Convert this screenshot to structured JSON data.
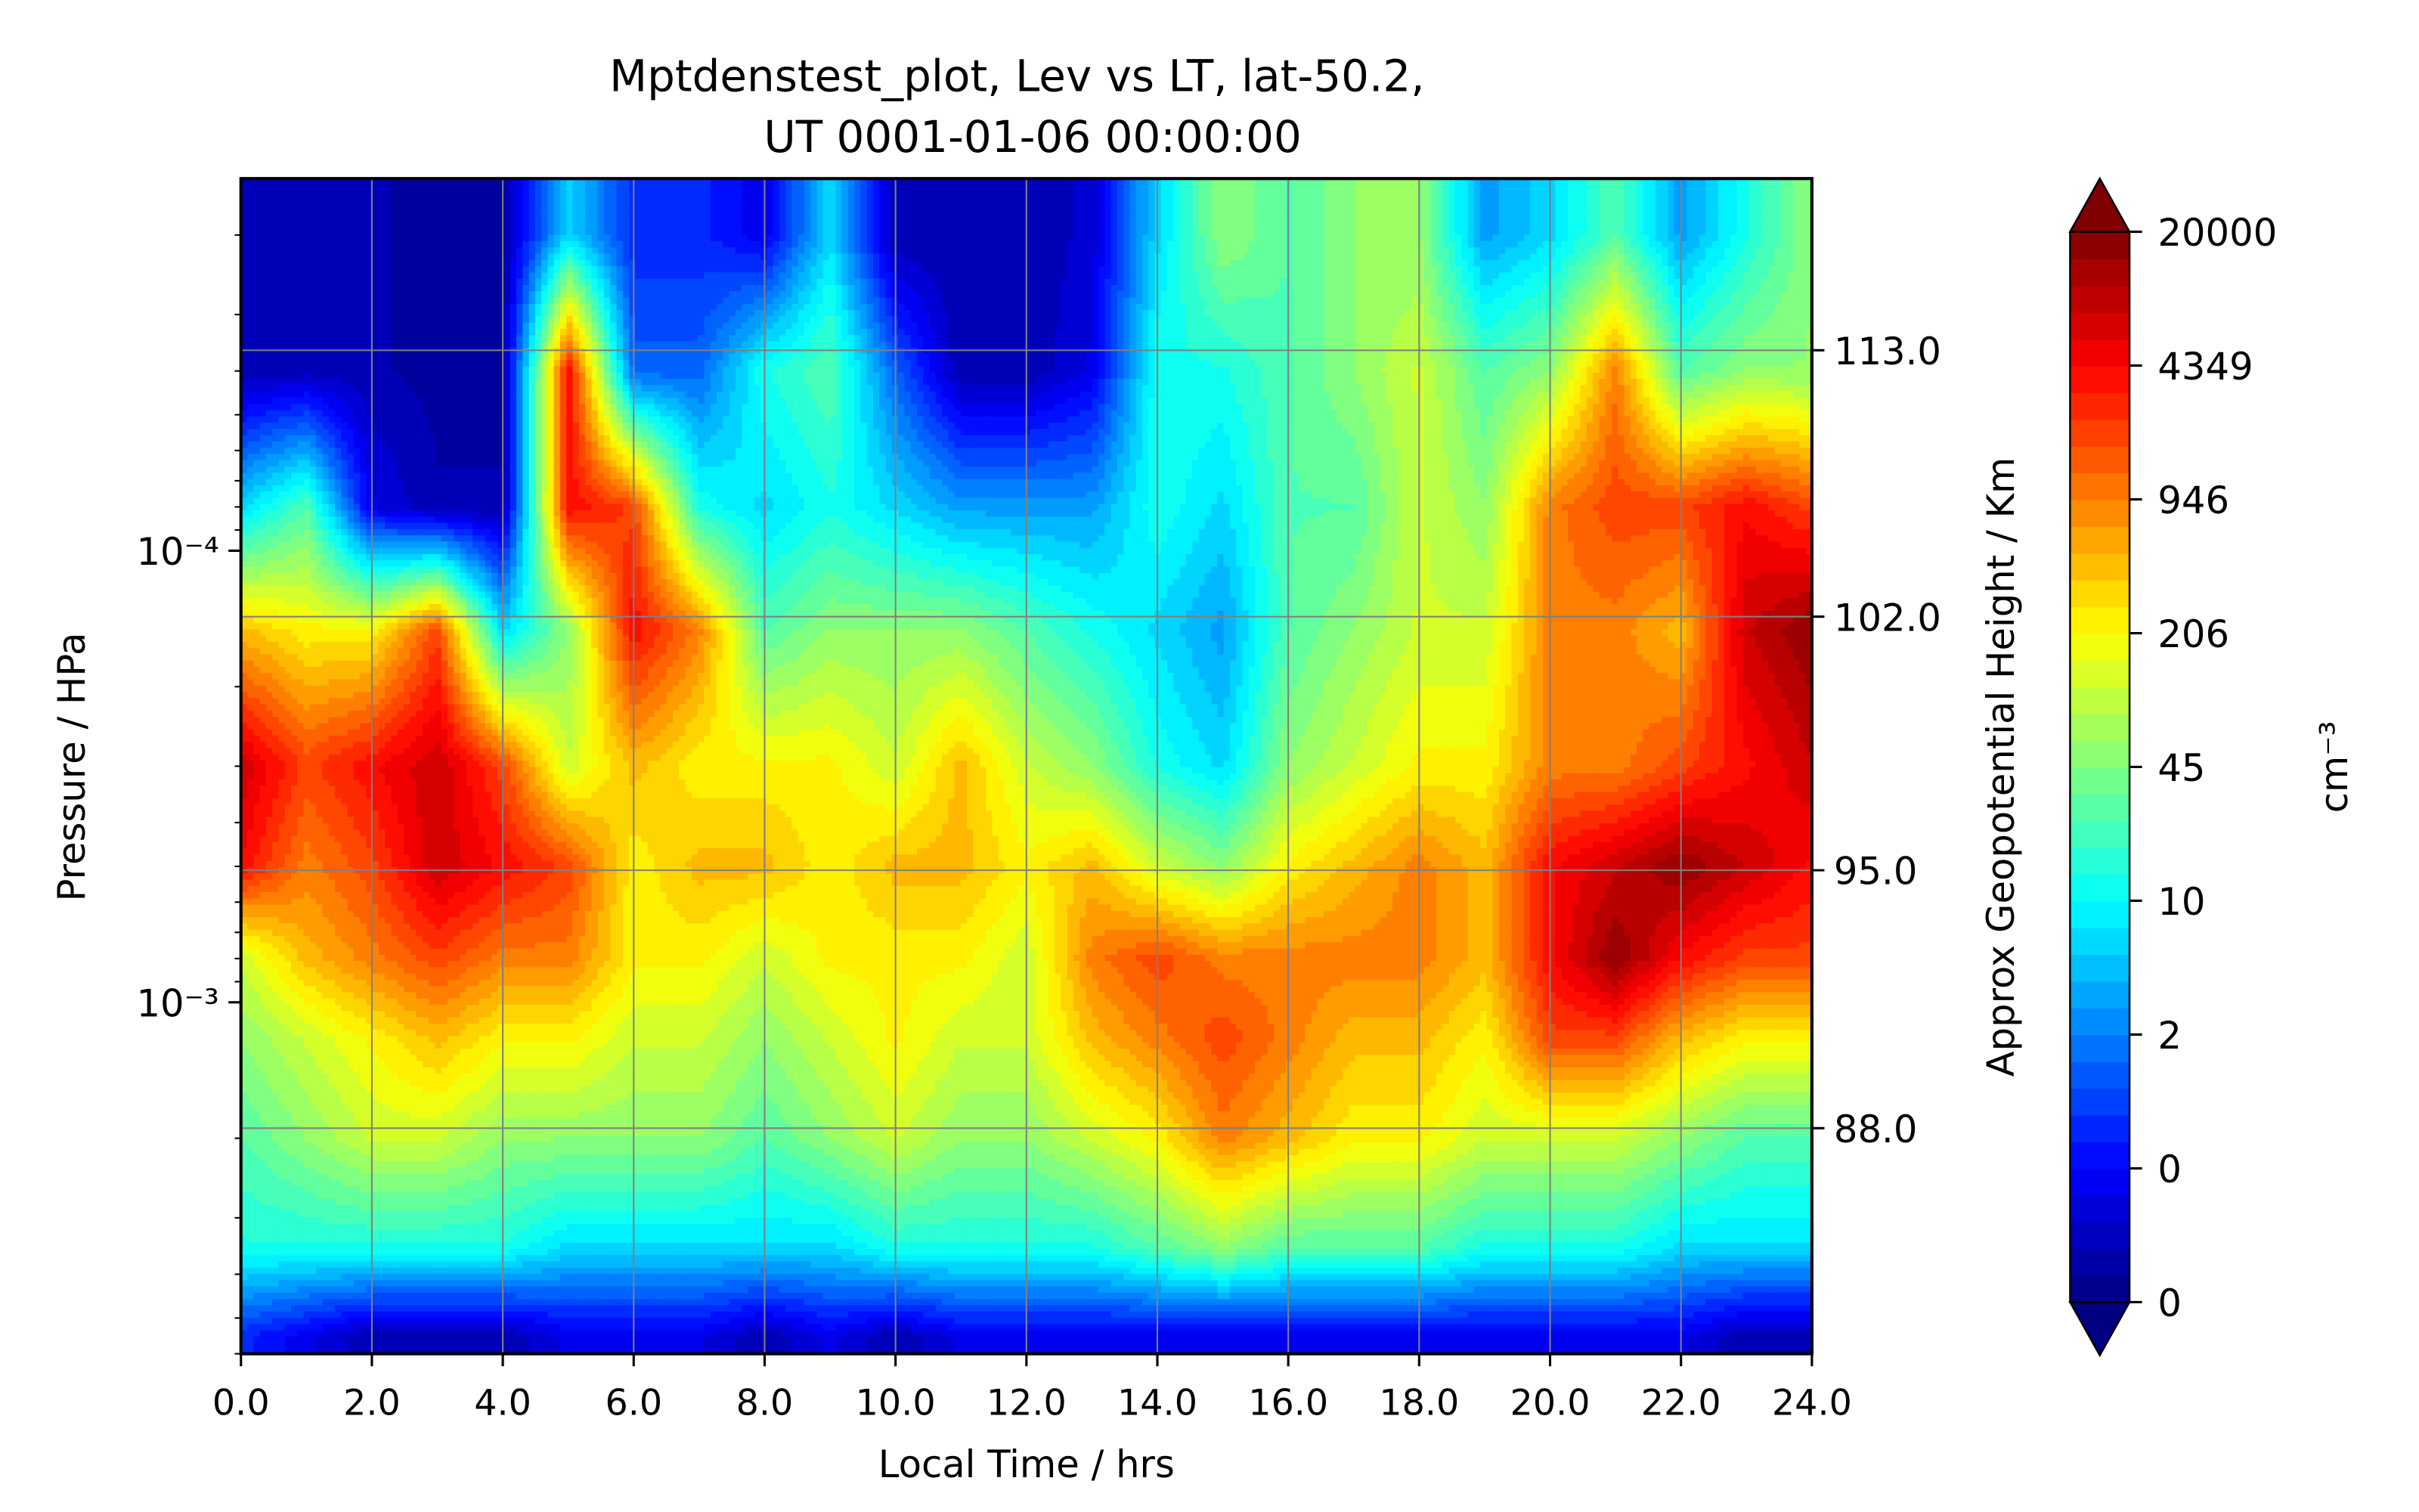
{
  "chart_data": {
    "type": "heatmap",
    "title_lines": [
      "Mptdenstest_plot, Lev vs LT, lat-50.2,",
      "UT 0001-01-06 00:00:00"
    ],
    "xlabel": "Local Time / hrs",
    "ylabel": "Pressure / HPa",
    "y2label": "Approx Geopotential Height / Km",
    "colorbar_label": "cm⁻³",
    "x_ticks": [
      "0.0",
      "2.0",
      "4.0",
      "6.0",
      "8.0",
      "10.0",
      "12.0",
      "14.0",
      "16.0",
      "18.0",
      "20.0",
      "22.0",
      "24.0"
    ],
    "xlim": [
      0,
      24
    ],
    "y_scale": "log",
    "y_ticks": [
      {
        "value": 0.0001,
        "label": "10⁻⁴"
      },
      {
        "value": 0.001,
        "label": "10⁻³"
      }
    ],
    "ylim": [
      0.006,
      1.5e-05
    ],
    "y2_ticks": [
      {
        "pressure": 3.6e-05,
        "label": "113.0"
      },
      {
        "pressure": 0.00014,
        "label": "102.0"
      },
      {
        "pressure": 0.00051,
        "label": "95.0"
      },
      {
        "pressure": 0.0019,
        "label": "88.0"
      }
    ],
    "colorbar_ticks": [
      "20000",
      "4349",
      "946",
      "206",
      "45",
      "10",
      "2",
      "0",
      "0"
    ],
    "colorbar_extend": "both",
    "colormap": "jet",
    "grid": true,
    "x": [
      0,
      1,
      2,
      3,
      4,
      5,
      6,
      7,
      8,
      9,
      10,
      11,
      12,
      13,
      14,
      15,
      16,
      17,
      18,
      19,
      20,
      21,
      22,
      23,
      24
    ],
    "levels_pressure": [
      2e-05,
      4e-05,
      8e-05,
      0.00015,
      0.0003,
      0.0005,
      0.0008,
      0.0012,
      0.002,
      0.0035,
      0.0055
    ],
    "z_color_index": [
      [
        0.5,
        0.6,
        0.5,
        0.4,
        0.4,
        3.0,
        1.5,
        1.5,
        1.0,
        3.0,
        0.5,
        0.5,
        0.5,
        0.8,
        3.0,
        4.5,
        4.0,
        4.5,
        4.5,
        2.5,
        3.0,
        4.0,
        2.5,
        3.5,
        4.5
      ],
      [
        0.5,
        0.6,
        0.5,
        0.4,
        0.4,
        7.5,
        2.0,
        2.0,
        3.5,
        4.0,
        2.0,
        0.5,
        0.5,
        1.0,
        3.5,
        3.5,
        4.0,
        4.5,
        5.0,
        4.0,
        4.5,
        6.5,
        4.0,
        4.5,
        4.5
      ],
      [
        3.0,
        4.0,
        1.0,
        0.5,
        0.5,
        7.5,
        7.0,
        3.5,
        3.0,
        3.5,
        3.0,
        2.5,
        2.5,
        2.5,
        3.5,
        3.0,
        4.0,
        4.0,
        5.0,
        4.5,
        6.5,
        7.0,
        7.0,
        7.5,
        7.0
      ],
      [
        6.0,
        5.5,
        5.5,
        7.0,
        3.0,
        4.5,
        7.5,
        6.5,
        4.0,
        4.5,
        4.5,
        4.5,
        4.0,
        3.5,
        3.0,
        2.5,
        4.0,
        4.5,
        5.0,
        5.0,
        6.5,
        6.5,
        6.0,
        8.0,
        8.5
      ],
      [
        8.0,
        7.0,
        7.5,
        8.0,
        7.0,
        5.0,
        6.0,
        5.5,
        5.5,
        5.5,
        5.0,
        6.0,
        5.0,
        4.5,
        3.5,
        3.0,
        4.5,
        5.0,
        5.5,
        5.5,
        6.5,
        6.5,
        7.0,
        7.5,
        8.0
      ],
      [
        7.5,
        6.5,
        7.0,
        8.0,
        7.5,
        7.0,
        5.5,
        6.0,
        6.0,
        5.5,
        6.0,
        6.0,
        5.5,
        6.0,
        5.0,
        4.5,
        5.5,
        6.0,
        6.5,
        6.0,
        7.5,
        8.0,
        8.5,
        8.0,
        7.5
      ],
      [
        5.0,
        6.0,
        6.5,
        7.0,
        6.5,
        6.5,
        5.5,
        5.5,
        5.0,
        5.5,
        5.5,
        5.5,
        5.0,
        6.5,
        7.0,
        6.5,
        6.5,
        6.5,
        6.5,
        6.0,
        7.5,
        8.5,
        7.5,
        7.0,
        7.0
      ],
      [
        4.5,
        5.0,
        5.5,
        6.0,
        5.5,
        5.5,
        5.0,
        5.0,
        4.5,
        5.0,
        5.5,
        5.0,
        5.0,
        6.0,
        6.5,
        7.0,
        6.5,
        6.0,
        6.0,
        5.5,
        7.0,
        7.0,
        6.0,
        5.5,
        5.5
      ],
      [
        4.0,
        4.5,
        5.0,
        5.0,
        4.5,
        4.5,
        4.5,
        4.5,
        4.0,
        4.5,
        5.0,
        4.5,
        4.5,
        5.0,
        5.5,
        6.5,
        6.0,
        5.5,
        5.5,
        5.0,
        5.0,
        5.0,
        4.5,
        4.0,
        4.0
      ],
      [
        3.5,
        3.5,
        3.5,
        3.5,
        3.5,
        3.0,
        3.0,
        3.0,
        3.0,
        3.0,
        3.5,
        3.5,
        3.5,
        3.5,
        4.0,
        4.5,
        4.0,
        4.0,
        4.0,
        3.5,
        3.5,
        3.5,
        3.0,
        3.0,
        3.0
      ],
      [
        1.5,
        1.0,
        0.5,
        0.5,
        0.5,
        1.0,
        1.0,
        1.0,
        0.5,
        1.0,
        0.5,
        1.0,
        1.0,
        1.0,
        1.0,
        1.0,
        1.0,
        1.0,
        1.0,
        1.0,
        1.0,
        1.0,
        1.0,
        0.5,
        0.5
      ]
    ],
    "colors": [
      "#00007f",
      "#0000ff",
      "#007fff",
      "#00d4ff",
      "#29ffce",
      "#7dff7a",
      "#cdff29",
      "#ffe600",
      "#ff8c00",
      "#ff2b00",
      "#cc0000",
      "#7f0000"
    ]
  }
}
